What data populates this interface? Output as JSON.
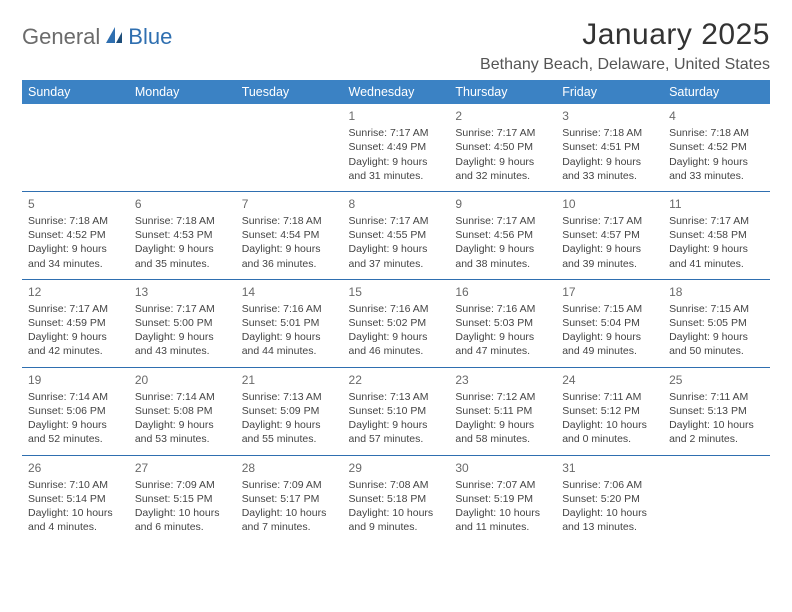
{
  "brand": {
    "general": "General",
    "blue": "Blue"
  },
  "title": "January 2025",
  "location": "Bethany Beach, Delaware, United States",
  "headers": [
    "Sunday",
    "Monday",
    "Tuesday",
    "Wednesday",
    "Thursday",
    "Friday",
    "Saturday"
  ],
  "theme": {
    "header_bg": "#3b82c4",
    "header_fg": "#ffffff",
    "rule_color": "#2f6fb0",
    "logo_gray": "#6b6b6b",
    "logo_blue": "#2f6fb0"
  },
  "weeks": [
    [
      null,
      null,
      null,
      {
        "n": "1",
        "sr": "Sunrise: 7:17 AM",
        "ss": "Sunset: 4:49 PM",
        "d1": "Daylight: 9 hours",
        "d2": "and 31 minutes."
      },
      {
        "n": "2",
        "sr": "Sunrise: 7:17 AM",
        "ss": "Sunset: 4:50 PM",
        "d1": "Daylight: 9 hours",
        "d2": "and 32 minutes."
      },
      {
        "n": "3",
        "sr": "Sunrise: 7:18 AM",
        "ss": "Sunset: 4:51 PM",
        "d1": "Daylight: 9 hours",
        "d2": "and 33 minutes."
      },
      {
        "n": "4",
        "sr": "Sunrise: 7:18 AM",
        "ss": "Sunset: 4:52 PM",
        "d1": "Daylight: 9 hours",
        "d2": "and 33 minutes."
      }
    ],
    [
      {
        "n": "5",
        "sr": "Sunrise: 7:18 AM",
        "ss": "Sunset: 4:52 PM",
        "d1": "Daylight: 9 hours",
        "d2": "and 34 minutes."
      },
      {
        "n": "6",
        "sr": "Sunrise: 7:18 AM",
        "ss": "Sunset: 4:53 PM",
        "d1": "Daylight: 9 hours",
        "d2": "and 35 minutes."
      },
      {
        "n": "7",
        "sr": "Sunrise: 7:18 AM",
        "ss": "Sunset: 4:54 PM",
        "d1": "Daylight: 9 hours",
        "d2": "and 36 minutes."
      },
      {
        "n": "8",
        "sr": "Sunrise: 7:17 AM",
        "ss": "Sunset: 4:55 PM",
        "d1": "Daylight: 9 hours",
        "d2": "and 37 minutes."
      },
      {
        "n": "9",
        "sr": "Sunrise: 7:17 AM",
        "ss": "Sunset: 4:56 PM",
        "d1": "Daylight: 9 hours",
        "d2": "and 38 minutes."
      },
      {
        "n": "10",
        "sr": "Sunrise: 7:17 AM",
        "ss": "Sunset: 4:57 PM",
        "d1": "Daylight: 9 hours",
        "d2": "and 39 minutes."
      },
      {
        "n": "11",
        "sr": "Sunrise: 7:17 AM",
        "ss": "Sunset: 4:58 PM",
        "d1": "Daylight: 9 hours",
        "d2": "and 41 minutes."
      }
    ],
    [
      {
        "n": "12",
        "sr": "Sunrise: 7:17 AM",
        "ss": "Sunset: 4:59 PM",
        "d1": "Daylight: 9 hours",
        "d2": "and 42 minutes."
      },
      {
        "n": "13",
        "sr": "Sunrise: 7:17 AM",
        "ss": "Sunset: 5:00 PM",
        "d1": "Daylight: 9 hours",
        "d2": "and 43 minutes."
      },
      {
        "n": "14",
        "sr": "Sunrise: 7:16 AM",
        "ss": "Sunset: 5:01 PM",
        "d1": "Daylight: 9 hours",
        "d2": "and 44 minutes."
      },
      {
        "n": "15",
        "sr": "Sunrise: 7:16 AM",
        "ss": "Sunset: 5:02 PM",
        "d1": "Daylight: 9 hours",
        "d2": "and 46 minutes."
      },
      {
        "n": "16",
        "sr": "Sunrise: 7:16 AM",
        "ss": "Sunset: 5:03 PM",
        "d1": "Daylight: 9 hours",
        "d2": "and 47 minutes."
      },
      {
        "n": "17",
        "sr": "Sunrise: 7:15 AM",
        "ss": "Sunset: 5:04 PM",
        "d1": "Daylight: 9 hours",
        "d2": "and 49 minutes."
      },
      {
        "n": "18",
        "sr": "Sunrise: 7:15 AM",
        "ss": "Sunset: 5:05 PM",
        "d1": "Daylight: 9 hours",
        "d2": "and 50 minutes."
      }
    ],
    [
      {
        "n": "19",
        "sr": "Sunrise: 7:14 AM",
        "ss": "Sunset: 5:06 PM",
        "d1": "Daylight: 9 hours",
        "d2": "and 52 minutes."
      },
      {
        "n": "20",
        "sr": "Sunrise: 7:14 AM",
        "ss": "Sunset: 5:08 PM",
        "d1": "Daylight: 9 hours",
        "d2": "and 53 minutes."
      },
      {
        "n": "21",
        "sr": "Sunrise: 7:13 AM",
        "ss": "Sunset: 5:09 PM",
        "d1": "Daylight: 9 hours",
        "d2": "and 55 minutes."
      },
      {
        "n": "22",
        "sr": "Sunrise: 7:13 AM",
        "ss": "Sunset: 5:10 PM",
        "d1": "Daylight: 9 hours",
        "d2": "and 57 minutes."
      },
      {
        "n": "23",
        "sr": "Sunrise: 7:12 AM",
        "ss": "Sunset: 5:11 PM",
        "d1": "Daylight: 9 hours",
        "d2": "and 58 minutes."
      },
      {
        "n": "24",
        "sr": "Sunrise: 7:11 AM",
        "ss": "Sunset: 5:12 PM",
        "d1": "Daylight: 10 hours",
        "d2": "and 0 minutes."
      },
      {
        "n": "25",
        "sr": "Sunrise: 7:11 AM",
        "ss": "Sunset: 5:13 PM",
        "d1": "Daylight: 10 hours",
        "d2": "and 2 minutes."
      }
    ],
    [
      {
        "n": "26",
        "sr": "Sunrise: 7:10 AM",
        "ss": "Sunset: 5:14 PM",
        "d1": "Daylight: 10 hours",
        "d2": "and 4 minutes."
      },
      {
        "n": "27",
        "sr": "Sunrise: 7:09 AM",
        "ss": "Sunset: 5:15 PM",
        "d1": "Daylight: 10 hours",
        "d2": "and 6 minutes."
      },
      {
        "n": "28",
        "sr": "Sunrise: 7:09 AM",
        "ss": "Sunset: 5:17 PM",
        "d1": "Daylight: 10 hours",
        "d2": "and 7 minutes."
      },
      {
        "n": "29",
        "sr": "Sunrise: 7:08 AM",
        "ss": "Sunset: 5:18 PM",
        "d1": "Daylight: 10 hours",
        "d2": "and 9 minutes."
      },
      {
        "n": "30",
        "sr": "Sunrise: 7:07 AM",
        "ss": "Sunset: 5:19 PM",
        "d1": "Daylight: 10 hours",
        "d2": "and 11 minutes."
      },
      {
        "n": "31",
        "sr": "Sunrise: 7:06 AM",
        "ss": "Sunset: 5:20 PM",
        "d1": "Daylight: 10 hours",
        "d2": "and 13 minutes."
      },
      null
    ]
  ]
}
